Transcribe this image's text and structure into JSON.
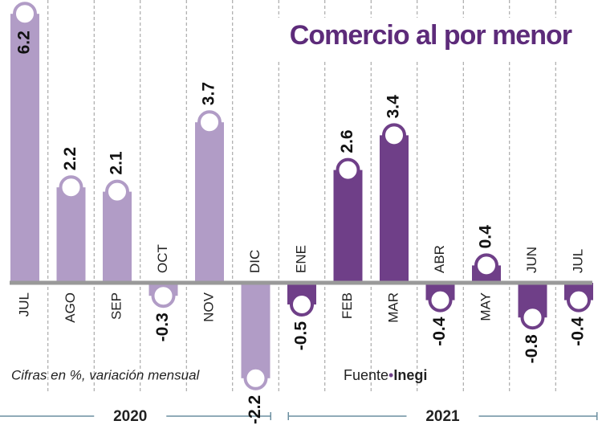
{
  "chart_data": {
    "type": "bar",
    "title": "Comercio al por menor",
    "note": "Cifras en %, variación mensual",
    "source": {
      "label": "Fuente",
      "name": "Inegi"
    },
    "categories": [
      "JUL",
      "AGO",
      "SEP",
      "OCT",
      "NOV",
      "DIC",
      "ENE",
      "FEB",
      "MAR",
      "ABR",
      "MAY",
      "JUN",
      "JUL"
    ],
    "series": [
      {
        "name": "2020",
        "color": "#b19cc6",
        "values": [
          6.2,
          2.2,
          2.1,
          -0.3,
          3.7,
          -2.2,
          null,
          null,
          null,
          null,
          null,
          null,
          null
        ]
      },
      {
        "name": "2021",
        "color": "#6f3f88",
        "values": [
          null,
          null,
          null,
          null,
          null,
          null,
          -0.5,
          2.6,
          3.4,
          -0.4,
          0.4,
          -0.8,
          -0.4
        ]
      }
    ],
    "grid": true
  }
}
